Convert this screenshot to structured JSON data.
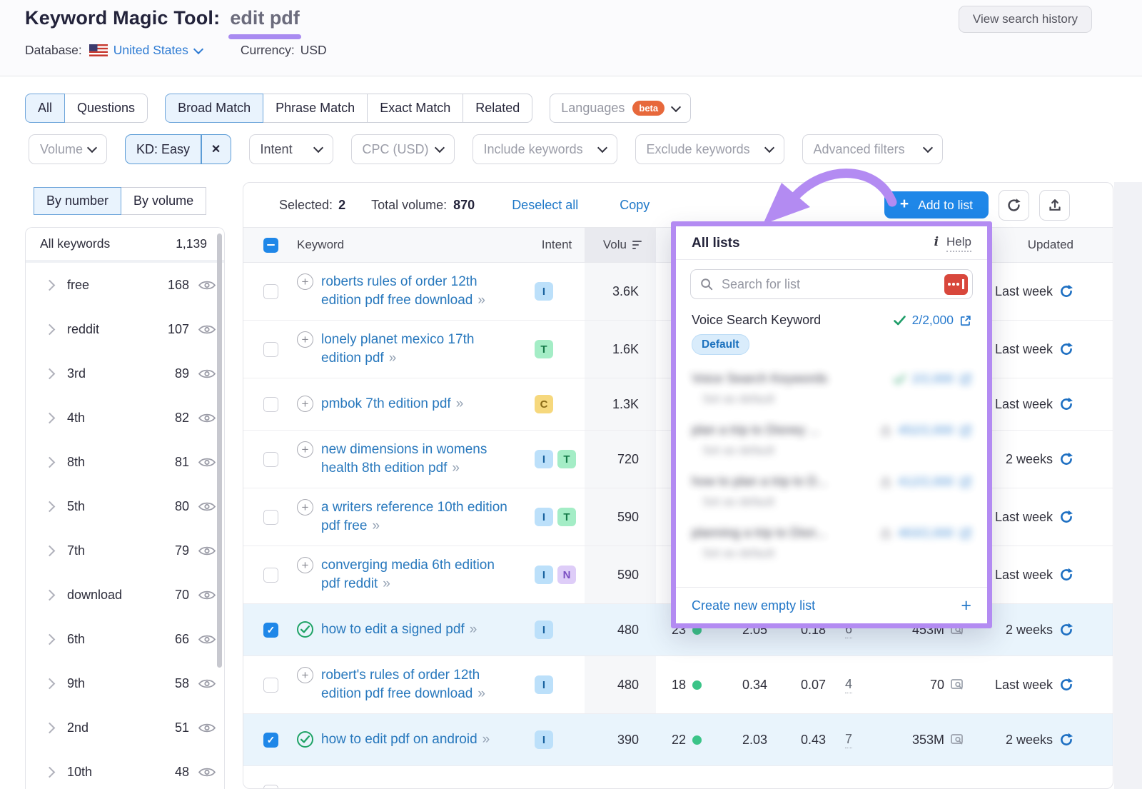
{
  "header": {
    "title": "Keyword Magic Tool:",
    "query": "edit pdf",
    "view_history": "View search history",
    "database_label": "Database:",
    "database_value": "United States",
    "currency_label": "Currency:",
    "currency_value": "USD"
  },
  "tabs": {
    "group1": [
      {
        "label": "All",
        "active": true
      },
      {
        "label": "Questions",
        "active": false
      }
    ],
    "group2": [
      {
        "label": "Broad Match",
        "active": true
      },
      {
        "label": "Phrase Match",
        "active": false
      },
      {
        "label": "Exact Match",
        "active": false
      },
      {
        "label": "Related",
        "active": false
      }
    ],
    "languages": {
      "label": "Languages",
      "badge": "beta"
    }
  },
  "filters": [
    {
      "label": "Volume",
      "type": "dropdown",
      "muted": true
    },
    {
      "label": "KD: Easy",
      "type": "chip"
    },
    {
      "label": "Intent",
      "type": "dropdown",
      "muted": false
    },
    {
      "label": "CPC (USD)",
      "type": "dropdown",
      "muted": true
    },
    {
      "label": "Include keywords",
      "type": "dropdown",
      "muted": true
    },
    {
      "label": "Exclude keywords",
      "type": "dropdown",
      "muted": true
    },
    {
      "label": "Advanced filters",
      "type": "dropdown",
      "muted": true
    }
  ],
  "sidebar": {
    "toggle": [
      {
        "label": "By number",
        "active": true
      },
      {
        "label": "By volume",
        "active": false
      }
    ],
    "all_keywords": {
      "label": "All keywords",
      "count": "1,139"
    },
    "groups": [
      {
        "label": "free",
        "count": "168"
      },
      {
        "label": "reddit",
        "count": "107"
      },
      {
        "label": "3rd",
        "count": "89"
      },
      {
        "label": "4th",
        "count": "82"
      },
      {
        "label": "8th",
        "count": "81"
      },
      {
        "label": "5th",
        "count": "80"
      },
      {
        "label": "7th",
        "count": "79"
      },
      {
        "label": "download",
        "count": "70"
      },
      {
        "label": "6th",
        "count": "66"
      },
      {
        "label": "9th",
        "count": "58"
      },
      {
        "label": "2nd",
        "count": "51"
      },
      {
        "label": "10th",
        "count": "48"
      }
    ]
  },
  "toolbar": {
    "selected_label": "Selected:",
    "selected_count": "2",
    "total_label": "Total volume:",
    "total_value": "870",
    "deselect": "Deselect all",
    "copy": "Copy",
    "add_to_list": "Add to list"
  },
  "table": {
    "headers": {
      "keyword": "Keyword",
      "intent": "Intent",
      "volume": "Volu",
      "updated": "Updated"
    },
    "rows": [
      {
        "keyword": "roberts rules of order 12th edition pdf free download",
        "intents": [
          "I"
        ],
        "volume": "3.6K",
        "updated": "Last week",
        "checked": false
      },
      {
        "keyword": "lonely planet mexico 17th edition pdf",
        "intents": [
          "T"
        ],
        "volume": "1.6K",
        "updated": "Last week",
        "checked": false
      },
      {
        "keyword": "pmbok 7th edition pdf",
        "intents": [
          "C"
        ],
        "volume": "1.3K",
        "updated": "Last week",
        "checked": false
      },
      {
        "keyword": "new dimensions in womens health 8th edition pdf",
        "intents": [
          "I",
          "T"
        ],
        "volume": "720",
        "updated": "2 weeks",
        "checked": false
      },
      {
        "keyword": "a writers reference 10th edition pdf free",
        "intents": [
          "I",
          "T"
        ],
        "volume": "590",
        "updated": "Last week",
        "checked": false
      },
      {
        "keyword": "converging media 6th edition pdf reddit",
        "intents": [
          "I",
          "N"
        ],
        "volume": "590",
        "updated": "Last week",
        "checked": false
      },
      {
        "keyword": "how to edit a signed pdf",
        "intents": [
          "I"
        ],
        "volume": "480",
        "kd": "23",
        "cpc": "2.05",
        "com": "0.18",
        "sf": "6",
        "results": "453M",
        "updated": "2 weeks",
        "checked": true
      },
      {
        "keyword": "robert's rules of order 12th edition pdf free download",
        "intents": [
          "I"
        ],
        "volume": "480",
        "kd": "18",
        "cpc": "0.34",
        "com": "0.07",
        "sf": "4",
        "results": "70",
        "updated": "Last week",
        "checked": false
      },
      {
        "keyword": "how to edit pdf on android",
        "intents": [
          "I"
        ],
        "volume": "390",
        "kd": "22",
        "cpc": "2.03",
        "com": "0.43",
        "sf": "7",
        "results": "353M",
        "updated": "2 weeks",
        "checked": true
      },
      {
        "keyword": "",
        "intents": [],
        "volume": "",
        "updated": "",
        "checked": false,
        "partial": true
      }
    ]
  },
  "popup": {
    "title": "All lists",
    "help": "Help",
    "search_placeholder": "Search for list",
    "lists": [
      {
        "name": "Voice Search Keyword",
        "count": "2/2,000",
        "badge": "Default",
        "checked": true,
        "blurred": false
      },
      {
        "name": "Voice Search Keywords",
        "count": "2/2,000",
        "sub": "Set as default",
        "checked": true,
        "blurred": true
      },
      {
        "name": "plan a trip to Disney ...",
        "count": "452/2,000",
        "sub": "Set as default",
        "locked": true,
        "blurred": true
      },
      {
        "name": "how to plan a trip to D...",
        "count": "412/2,000",
        "sub": "Set as default",
        "locked": true,
        "blurred": true
      },
      {
        "name": "planning a trip to Disn...",
        "count": "463/2,000",
        "sub": "Set as default",
        "locked": true,
        "blurred": true
      }
    ],
    "create": "Create new empty list"
  },
  "icons": {
    "plus": "+",
    "close": "✕",
    "expand": "»",
    "info": "i"
  },
  "colors": {
    "accent_purple": "#b38bf2",
    "brand_blue": "#1f87e8",
    "link_blue": "#2878bd",
    "action_link": "#1e78c8",
    "selected_row_bg": "#e9f4fc",
    "beta_orange": "#e7683b",
    "kd_dot_green": "#3bc488",
    "intent": {
      "I": {
        "bg": "#bce0fa",
        "fg": "#19629f"
      },
      "T": {
        "bg": "#a4edc6",
        "fg": "#157a49"
      },
      "C": {
        "bg": "#f6d87d",
        "fg": "#8a6a16"
      },
      "N": {
        "bg": "#decdf8",
        "fg": "#7a4ec2"
      }
    }
  }
}
